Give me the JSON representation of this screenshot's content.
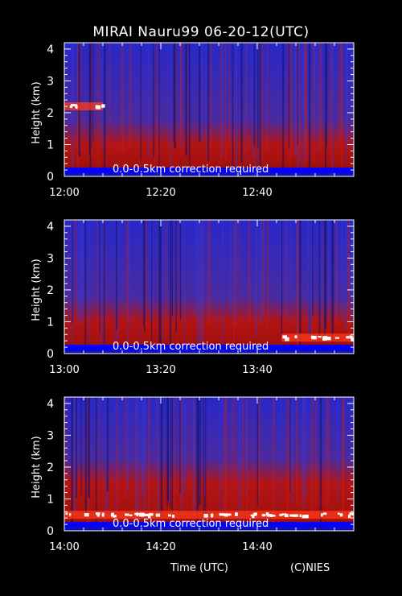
{
  "title": "MIRAI Nauru99 06-20-12(UTC)",
  "colors": {
    "background": "#000000",
    "signal_low": "#2828c8",
    "signal_mid": "#b41414",
    "signal_high": "#ffffff",
    "near_ground_band": "#0000ff"
  },
  "chart_data": [
    {
      "type": "heatmap",
      "ylabel": "Height (km)",
      "yticks": [
        "0",
        "1",
        "2",
        "3",
        "4"
      ],
      "ylim": [
        0,
        4.2
      ],
      "xticks": [
        "12:00",
        "12:20",
        "12:40"
      ],
      "xlim": [
        "12:00",
        "13:00"
      ],
      "annotation": "0.0-0.5km correction required",
      "features": {
        "layer_top_km": 1.0,
        "cloud_base_km": 2.2,
        "cloud_start_min": 0,
        "cloud_end_min": 8
      }
    },
    {
      "type": "heatmap",
      "ylabel": "Height (km)",
      "yticks": [
        "0",
        "1",
        "2",
        "3",
        "4"
      ],
      "ylim": [
        0,
        4.2
      ],
      "xticks": [
        "13:00",
        "13:20",
        "13:40"
      ],
      "xlim": [
        "13:00",
        "14:00"
      ],
      "annotation": "0.0-0.5km correction required",
      "features": {
        "layer_top_km": 1.0,
        "cloud_base_km": 0.5,
        "cloud_start_min": 45,
        "cloud_end_min": 60
      }
    },
    {
      "type": "heatmap",
      "ylabel": "Height (km)",
      "yticks": [
        "0",
        "1",
        "2",
        "3",
        "4"
      ],
      "ylim": [
        0,
        4.2
      ],
      "xticks": [
        "14:00",
        "14:20",
        "14:40"
      ],
      "xlim": [
        "14:00",
        "15:00"
      ],
      "annotation": "0.0-0.5km correction required",
      "features": {
        "layer_top_km": 1.5,
        "cloud_base_km": 0.5,
        "cloud_start_min": 0,
        "cloud_end_min": 60
      }
    }
  ],
  "xlabel": "Time (UTC)",
  "credit": "(C)NIES"
}
